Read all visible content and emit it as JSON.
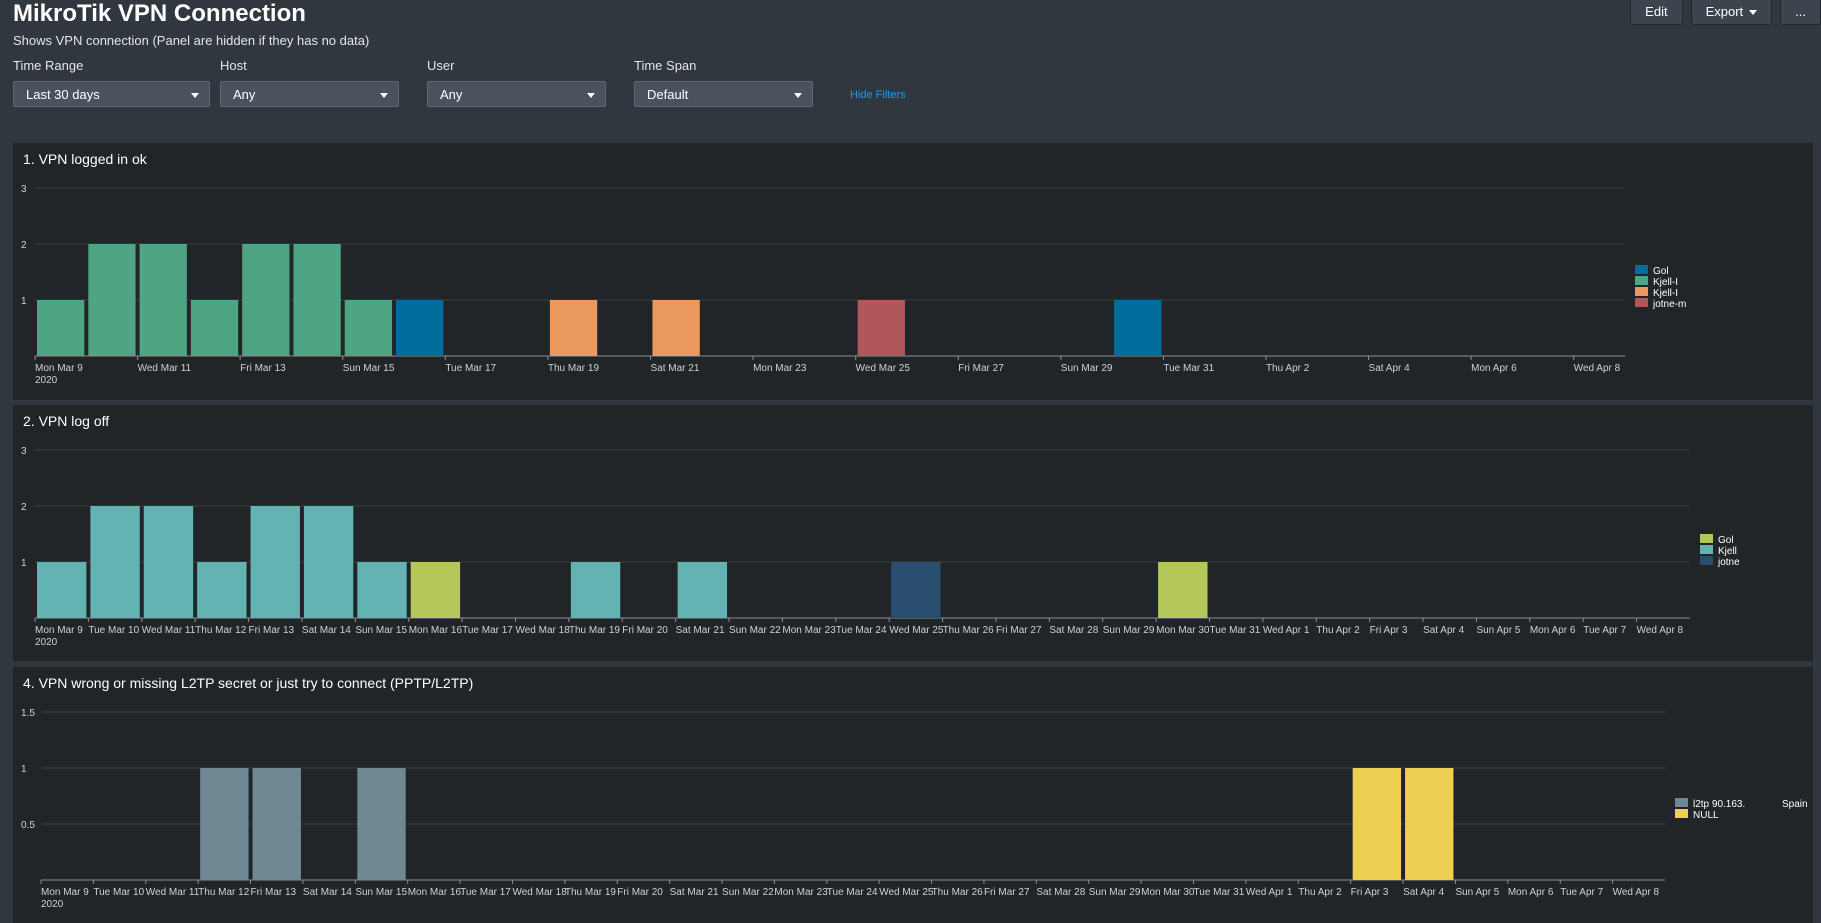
{
  "header": {
    "title": "MikroTik VPN Connection",
    "subtitle": "Shows VPN connection (Panel are hidden if they has no data)",
    "buttons": {
      "edit": "Edit",
      "export": "Export",
      "more": "..."
    }
  },
  "filters": [
    {
      "label": "Time Range",
      "value": "Last 30 days"
    },
    {
      "label": "Host",
      "value": "Any"
    },
    {
      "label": "User",
      "value": "Any"
    },
    {
      "label": "Time Span",
      "value": "Default"
    }
  ],
  "hide_filters_label": "Hide Filters",
  "colors": {
    "background": "#31373e",
    "panel": "#212527",
    "link": "#1a9ce8"
  },
  "chart_data": [
    {
      "type": "bar",
      "title": "1. VPN logged in ok",
      "ylim": [
        0,
        3
      ],
      "y_ticks": [
        "3",
        "2",
        "1"
      ],
      "x_tick_labels": [
        "Mon Mar 9",
        "Wed Mar 11",
        "Fri Mar 13",
        "Sun Mar 15",
        "Tue Mar 17",
        "Thu Mar 19",
        "Sat Mar 21",
        "Mon Mar 23",
        "Wed Mar 25",
        "Fri Mar 27",
        "Sun Mar 29",
        "Tue Mar 31",
        "Thu Apr 2",
        "Sat Apr 4",
        "Mon Apr 6",
        "Wed Apr 8"
      ],
      "x_year_label": "2020",
      "num_days": 31,
      "legend_position": "right",
      "series": [
        {
          "name": "Gol",
          "color": "#006d9c",
          "x": [
            "Mar 16",
            "Mar 30"
          ],
          "values": [
            1,
            1
          ]
        },
        {
          "name": "Kjell-I",
          "color": "#4fa484",
          "x": [
            "Mar 9",
            "Mar 10",
            "Mar 11",
            "Mar 12",
            "Mar 13",
            "Mar 14",
            "Mar 15"
          ],
          "values": [
            1,
            2,
            2,
            1,
            2,
            2,
            1
          ]
        },
        {
          "name": "Kjell-I",
          "color": "#ec9960",
          "x": [
            "Mar 19",
            "Mar 21"
          ],
          "values": [
            1,
            1
          ]
        },
        {
          "name": "jotne-m",
          "color": "#af575a",
          "x": [
            "Mar 25"
          ],
          "values": [
            1
          ]
        }
      ]
    },
    {
      "type": "bar",
      "title": "2. VPN log off",
      "ylim": [
        0,
        3
      ],
      "y_ticks": [
        "3",
        "2",
        "1"
      ],
      "x_tick_labels": [
        "Mon Mar 9",
        "Tue Mar 10",
        "Wed Mar 11",
        "Thu Mar 12",
        "Fri Mar 13",
        "Sat Mar 14",
        "Sun Mar 15",
        "Mon Mar 16",
        "Tue Mar 17",
        "Wed Mar 18",
        "Thu Mar 19",
        "Fri Mar 20",
        "Sat Mar 21",
        "Sun Mar 22",
        "Mon Mar 23",
        "Tue Mar 24",
        "Wed Mar 25",
        "Thu Mar 26",
        "Fri Mar 27",
        "Sat Mar 28",
        "Sun Mar 29",
        "Mon Mar 30",
        "Tue Mar 31",
        "Wed Apr 1",
        "Thu Apr 2",
        "Fri Apr 3",
        "Sat Apr 4",
        "Sun Apr 5",
        "Mon Apr 6",
        "Tue Apr 7",
        "Wed Apr 8"
      ],
      "x_year_label": "2020",
      "num_days": 31,
      "legend_position": "right",
      "series": [
        {
          "name": "Gol",
          "color": "#b6c75a",
          "x": [
            "Mar 16",
            "Mar 30"
          ],
          "values": [
            1,
            1
          ]
        },
        {
          "name": "Kjell",
          "color": "#62b3b2",
          "x": [
            "Mar 9",
            "Mar 10",
            "Mar 11",
            "Mar 12",
            "Mar 13",
            "Mar 14",
            "Mar 15",
            "Mar 19",
            "Mar 21"
          ],
          "values": [
            1,
            2,
            2,
            1,
            2,
            2,
            1,
            1,
            1
          ]
        },
        {
          "name": "jotne",
          "color": "#294e70",
          "x": [
            "Mar 25"
          ],
          "values": [
            1
          ]
        }
      ]
    },
    {
      "type": "bar",
      "title": "4. VPN wrong or missing L2TP secret or just try to connect (PPTP/L2TP)",
      "ylim": [
        0,
        1.5
      ],
      "y_ticks": [
        "1.5",
        "1",
        "0.5"
      ],
      "x_tick_labels": [
        "Mon Mar 9",
        "Tue Mar 10",
        "Wed Mar 11",
        "Thu Mar 12",
        "Fri Mar 13",
        "Sat Mar 14",
        "Sun Mar 15",
        "Mon Mar 16",
        "Tue Mar 17",
        "Wed Mar 18",
        "Thu Mar 19",
        "Fri Mar 20",
        "Sat Mar 21",
        "Sun Mar 22",
        "Mon Mar 23",
        "Tue Mar 24",
        "Wed Mar 25",
        "Thu Mar 26",
        "Fri Mar 27",
        "Sat Mar 28",
        "Sun Mar 29",
        "Mon Mar 30",
        "Tue Mar 31",
        "Wed Apr 1",
        "Thu Apr 2",
        "Fri Apr 3",
        "Sat Apr 4",
        "Sun Apr 5",
        "Mon Apr 6",
        "Tue Apr 7",
        "Wed Apr 8"
      ],
      "x_year_label": "2020",
      "num_days": 31,
      "legend_position": "right",
      "series": [
        {
          "name": "l2tp 90.163.",
          "suffix": "Spain",
          "color": "#708794",
          "x": [
            "Mar 12",
            "Mar 13",
            "Mar 15"
          ],
          "values": [
            1,
            1,
            1
          ]
        },
        {
          "name": "NULL",
          "color": "#edd051",
          "x": [
            "Apr 3",
            "Apr 4"
          ],
          "values": [
            1,
            1
          ]
        }
      ]
    }
  ]
}
